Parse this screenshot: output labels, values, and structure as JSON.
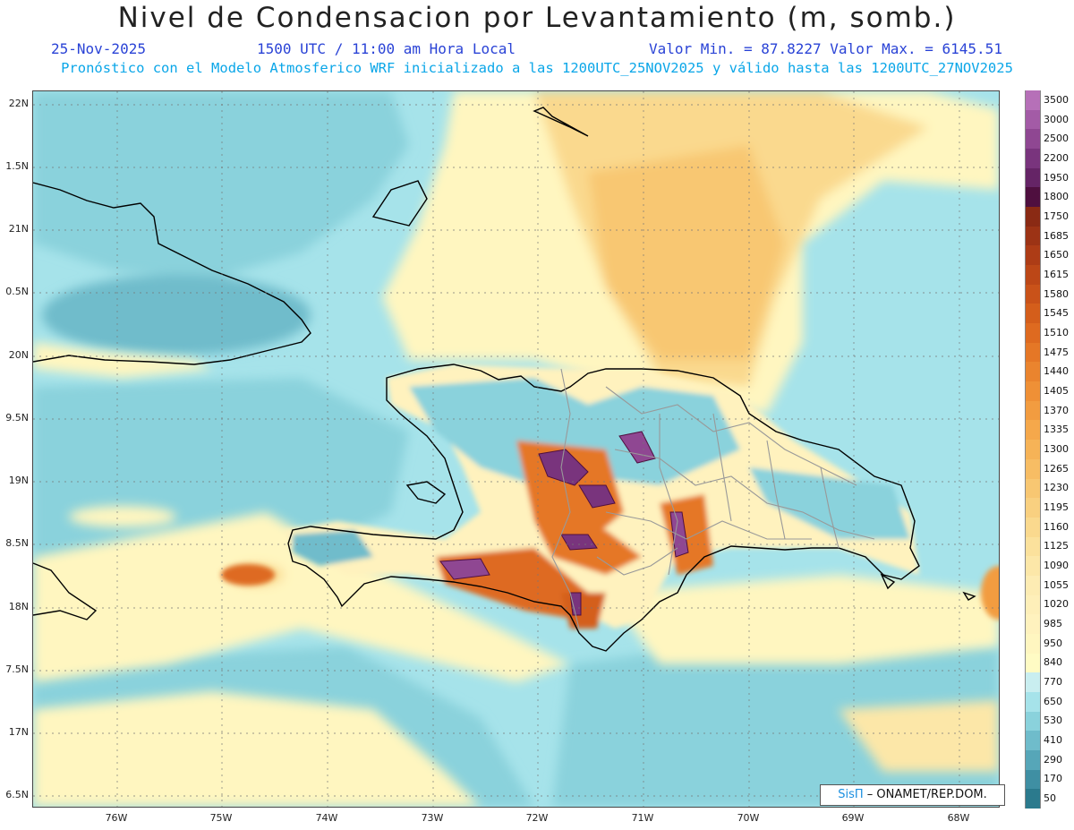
{
  "header": {
    "title": "Nivel de Condensacion por Levantamiento (m, somb.)",
    "date": "25-Nov-2025",
    "time": "1500 UTC / 11:00 am Hora Local",
    "minmax": "Valor Min. = 87.8227  Valor Max. = 6145.51",
    "forecast": "Pronóstico con el Modelo Atmosferico WRF inicializado a las 1200UTC_25NOV2025 y válido hasta las  1200UTC_27NOV2025"
  },
  "lat_labels": [
    "22N",
    "1.5N",
    "21N",
    "0.5N",
    "20N",
    "9.5N",
    "19N",
    "8.5N",
    "18N",
    "7.5N",
    "17N",
    "6.5N"
  ],
  "lon_labels": [
    "76W",
    "75W",
    "74W",
    "73W",
    "72W",
    "71W",
    "70W",
    "69W",
    "68W"
  ],
  "colorbar": {
    "labels": [
      "3500",
      "3000",
      "2500",
      "2200",
      "1950",
      "1800",
      "1750",
      "1685",
      "1650",
      "1615",
      "1580",
      "1545",
      "1510",
      "1475",
      "1440",
      "1405",
      "1370",
      "1335",
      "1300",
      "1265",
      "1230",
      "1195",
      "1160",
      "1125",
      "1090",
      "1055",
      "1020",
      "985",
      "950",
      "840",
      "770",
      "650",
      "530",
      "410",
      "290",
      "170",
      "50"
    ],
    "colors": [
      "#b670b8",
      "#a35ba6",
      "#8f4792",
      "#79347d",
      "#652466",
      "#4f0f3f",
      "#8a2a14",
      "#9c3315",
      "#ad3c16",
      "#bc4717",
      "#c95219",
      "#d45e1b",
      "#de6a20",
      "#e57726",
      "#ea842e",
      "#ef9036",
      "#f29c40",
      "#f5a84b",
      "#f6b357",
      "#f7bd64",
      "#f8c772",
      "#f9d080",
      "#fad98e",
      "#fbe19c",
      "#fce7a8",
      "#fdecb3",
      "#feefb9",
      "#fff2be",
      "#fff6c0",
      "#fffbc4",
      "#c9eef0",
      "#a6e3ea",
      "#8ad2dc",
      "#6fbccb",
      "#56a6b8",
      "#3f8fa3",
      "#2b7a8d"
    ]
  },
  "credit": {
    "brand": "SisΠ",
    "text": " – ONAMET/REP.DOM."
  }
}
